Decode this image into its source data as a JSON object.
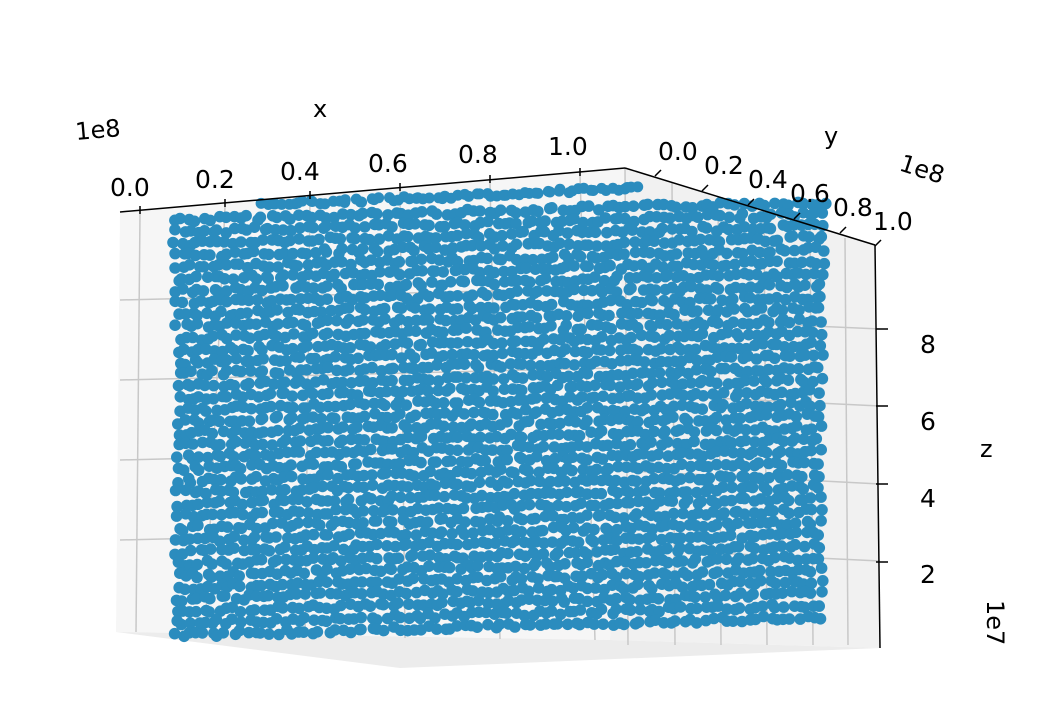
{
  "chart_data": {
    "type": "scatter",
    "title": "",
    "xlabel": "x",
    "ylabel": "y",
    "zlabel": "z",
    "x_multiplier_label": "1e8",
    "y_multiplier_label": "1e8",
    "z_multiplier_label": "1e7",
    "x_ticks": [
      "0.0",
      "0.2",
      "0.4",
      "0.6",
      "0.8",
      "1.0"
    ],
    "y_ticks": [
      "0.0",
      "0.2",
      "0.4",
      "0.6",
      "0.8",
      "1.0"
    ],
    "z_ticks": [
      "2",
      "4",
      "6",
      "8"
    ],
    "xlim": [
      0,
      100000000
    ],
    "ylim": [
      0,
      100000000
    ],
    "zlim": [
      0,
      100000000
    ],
    "series_color": "#2b8cbe",
    "pane_color": "#f2f2f2",
    "grid": true,
    "description_of_points": "dense uniform grid of points filling the 3D box"
  }
}
